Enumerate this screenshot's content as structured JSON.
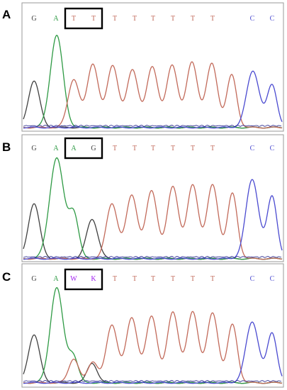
{
  "colors": {
    "G": "#404040",
    "A": "#2e9a44",
    "T": "#c26a5a",
    "C": "#4a4ad0",
    "W": "#a020f0",
    "K": "#a020f0",
    "baseline_blue": "#20208a"
  },
  "panels": [
    {
      "label": "A",
      "bases": [
        "G",
        "A",
        "T",
        "T",
        "T",
        "T",
        "T",
        "T",
        "T",
        "T",
        "C",
        "C"
      ],
      "highlight": [
        2,
        3
      ]
    },
    {
      "label": "B",
      "bases": [
        "G",
        "A",
        "A",
        "G",
        "T",
        "T",
        "T",
        "T",
        "T",
        "T",
        "C",
        "C"
      ],
      "highlight": [
        2,
        3
      ]
    },
    {
      "label": "C",
      "bases": [
        "G",
        "A",
        "W",
        "K",
        "T",
        "T",
        "T",
        "T",
        "T",
        "T",
        "C",
        "C"
      ],
      "highlight": [
        2,
        3
      ]
    }
  ]
}
